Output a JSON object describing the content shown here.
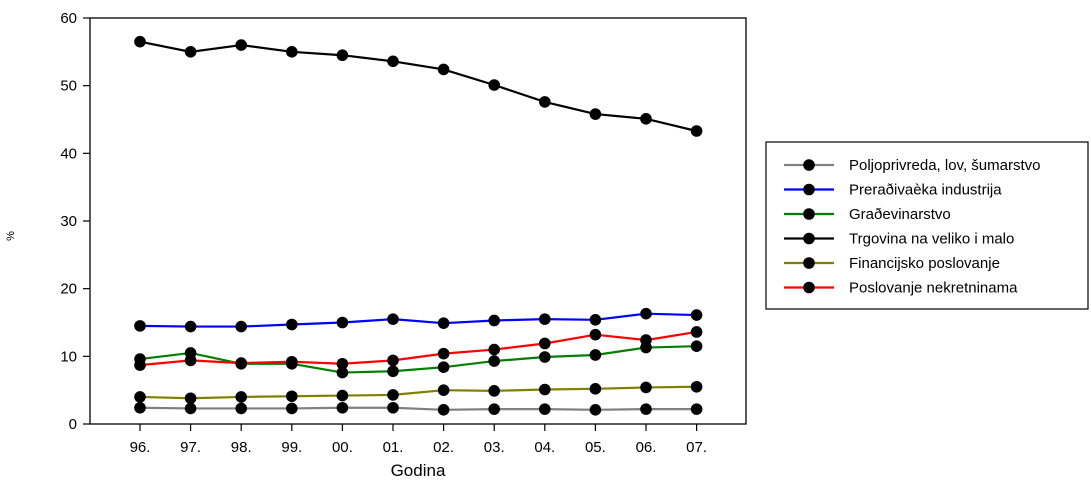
{
  "chart_data": {
    "type": "line",
    "title": "",
    "xlabel": "Godina",
    "ylabel": "%",
    "categories": [
      "96.",
      "97.",
      "98.",
      "99.",
      "00.",
      "01.",
      "02.",
      "03.",
      "04.",
      "05.",
      "06.",
      "07."
    ],
    "ylim": [
      0,
      60
    ],
    "yticks": [
      "0",
      "10",
      "20",
      "30",
      "40",
      "50",
      "60"
    ],
    "grid": false,
    "legend_position": "right",
    "series": [
      {
        "name": "Poljoprivreda, lov, šumarstvo",
        "color": "#808080",
        "values": [
          2.4,
          2.3,
          2.3,
          2.3,
          2.4,
          2.4,
          2.1,
          2.2,
          2.2,
          2.1,
          2.2,
          2.2
        ]
      },
      {
        "name": "Preraðivaèka industrija",
        "color": "#0000ff",
        "values": [
          14.5,
          14.4,
          14.4,
          14.7,
          15.0,
          15.5,
          14.9,
          15.3,
          15.5,
          15.4,
          16.3,
          16.1
        ]
      },
      {
        "name": "Graðevinarstvo",
        "color": "#008000",
        "values": [
          9.6,
          10.5,
          8.9,
          8.9,
          7.6,
          7.8,
          8.4,
          9.3,
          9.9,
          10.2,
          11.3,
          11.5
        ]
      },
      {
        "name": "Trgovina na veliko i malo",
        "color": "#000000",
        "values": [
          56.5,
          55.0,
          56.0,
          55.0,
          54.5,
          53.6,
          52.4,
          50.1,
          47.6,
          45.8,
          45.1,
          43.3
        ]
      },
      {
        "name": "Financijsko poslovanje",
        "color": "#808000",
        "values": [
          4.0,
          3.8,
          4.0,
          4.1,
          4.2,
          4.3,
          5.0,
          4.9,
          5.1,
          5.2,
          5.4,
          5.5
        ]
      },
      {
        "name": "Poslovanje nekretninama",
        "color": "#ff0000",
        "values": [
          8.7,
          9.4,
          9.0,
          9.2,
          8.9,
          9.4,
          10.4,
          11.0,
          11.9,
          13.2,
          12.4,
          13.6
        ]
      }
    ]
  }
}
